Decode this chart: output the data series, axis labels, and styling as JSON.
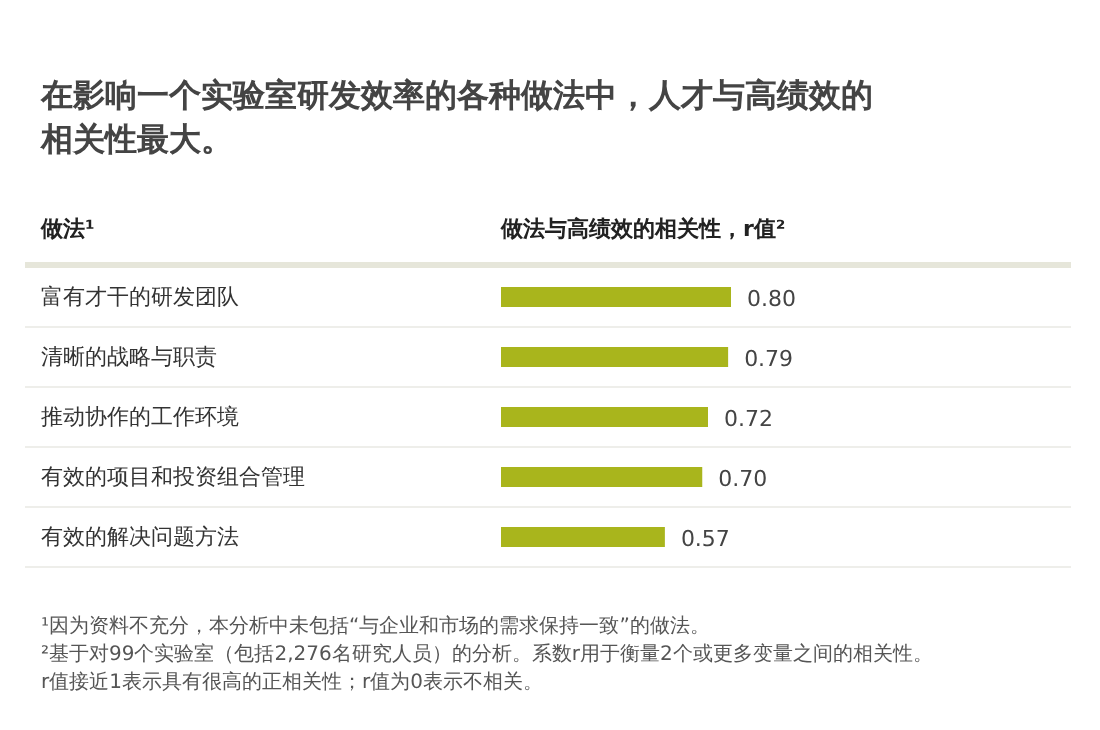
{
  "chart_data": {
    "type": "bar",
    "orientation": "horizontal",
    "title": "在影响一个实验室研发效率的各种做法中，人才与高绩效的相关性最大。",
    "ylabel": "做法¹",
    "xlabel": "做法与高绩效的相关性，r值²",
    "categories": [
      "富有才干的研发团队",
      "清晰的战略与职责",
      "推动协作的工作环境",
      "有效的项目和投资组合管理",
      "有效的解决问题方法"
    ],
    "values": [
      0.8,
      0.79,
      0.72,
      0.7,
      0.57
    ],
    "value_labels": [
      "0.80",
      "0.79",
      "0.72",
      "0.70",
      "0.57"
    ],
    "color": "#a9b51c",
    "grid": false,
    "annotations": [
      "¹因为资料不充分，本分析中未包括“与企业和市场的需求保持一致”的做法。",
      "²基于对99个实验室（包括2,276名研究人员）的分析。系数r用于衡量2个或更多变量之间的相关性。r值接近1表示具有很高的正相关性；r值为0表示不相关。"
    ]
  }
}
